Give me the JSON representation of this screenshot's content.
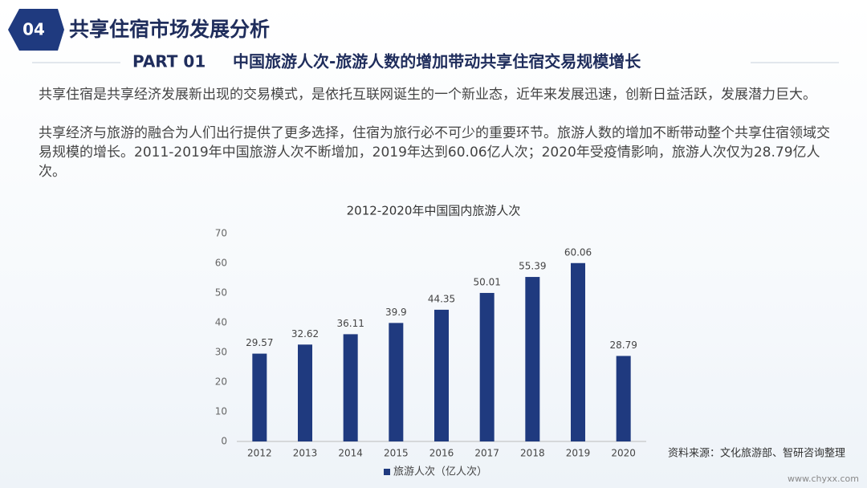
{
  "header": {
    "badge": "04",
    "title": "共享住宿市场发展分析",
    "part": "PART 01",
    "subtitle": "中国旅游人次-旅游人数的增加带动共享住宿交易规模增长"
  },
  "paragraphs": [
    "共享住宿是共享经济发展新出现的交易模式，是依托互联网诞生的一个新业态，近年来发展迅速，创新日益活跃，发展潜力巨大。",
    "共享经济与旅游的融合为人们出行提供了更多选择，住宿为旅行必不可少的重要环节。旅游人数的增加不断带动整个共享住宿领域交易规模的增长。2011-2019年中国旅游人次不断增加，2019年达到60.06亿人次；2020年受疫情影响，旅游人次仅为28.79亿人次。"
  ],
  "chart_data": {
    "type": "bar",
    "title": "2012-2020年中国国内旅游人次",
    "categories": [
      "2012",
      "2013",
      "2014",
      "2015",
      "2016",
      "2017",
      "2018",
      "2019",
      "2020"
    ],
    "series": [
      {
        "name": "旅游人次（亿人次）",
        "color": "#1f3a7f",
        "values": [
          29.57,
          32.62,
          36.11,
          39.9,
          44.35,
          50.01,
          55.39,
          60.06,
          28.79
        ]
      }
    ],
    "ylim": [
      0,
      70
    ],
    "yticks": [
      0,
      10,
      20,
      30,
      40,
      50,
      60,
      70
    ],
    "grid": false,
    "legend": "bottom"
  },
  "source": "资料来源：文化旅游部、智研咨询整理",
  "watermark": "www.chyxx.com"
}
